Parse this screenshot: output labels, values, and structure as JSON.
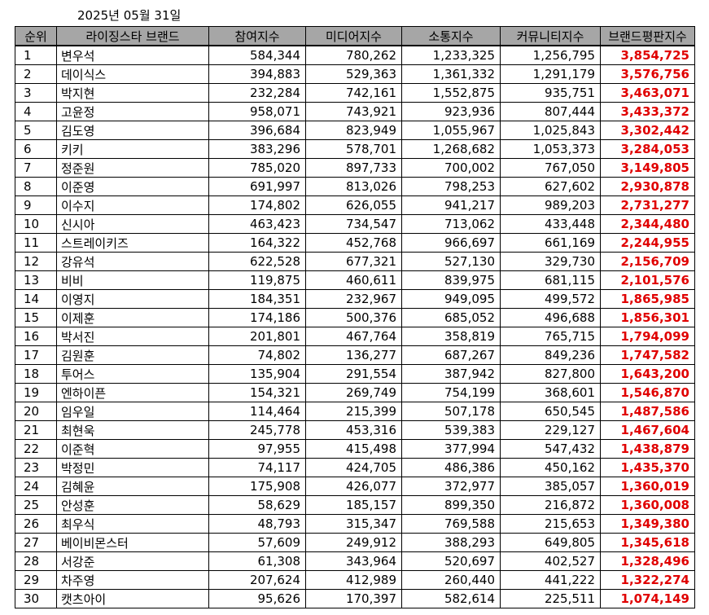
{
  "date": "2025년 05월 31일",
  "headers": [
    "순위",
    "라이징스타 브랜드",
    "참여지수",
    "미디어지수",
    "소통지수",
    "커뮤니티지수",
    "브랜드평판지수"
  ],
  "rows": [
    [
      "1",
      "변우석",
      "584,344",
      "780,262",
      "1,233,325",
      "1,256,795",
      "3,854,725"
    ],
    [
      "2",
      "데이식스",
      "394,883",
      "529,363",
      "1,361,332",
      "1,291,179",
      "3,576,756"
    ],
    [
      "3",
      "박지현",
      "232,284",
      "742,161",
      "1,552,875",
      "935,751",
      "3,463,071"
    ],
    [
      "4",
      "고윤정",
      "958,071",
      "743,921",
      "923,936",
      "807,444",
      "3,433,372"
    ],
    [
      "5",
      "김도영",
      "396,684",
      "823,949",
      "1,055,967",
      "1,025,843",
      "3,302,442"
    ],
    [
      "6",
      "키키",
      "383,296",
      "578,701",
      "1,268,682",
      "1,053,373",
      "3,284,053"
    ],
    [
      "7",
      "정준원",
      "785,020",
      "897,733",
      "700,002",
      "767,050",
      "3,149,805"
    ],
    [
      "8",
      "이준영",
      "691,997",
      "813,026",
      "798,253",
      "627,602",
      "2,930,878"
    ],
    [
      "9",
      "이수지",
      "174,802",
      "626,055",
      "941,217",
      "989,203",
      "2,731,277"
    ],
    [
      "10",
      "신시아",
      "463,423",
      "734,547",
      "713,062",
      "433,448",
      "2,344,480"
    ],
    [
      "11",
      "스트레이키즈",
      "164,322",
      "452,768",
      "966,697",
      "661,169",
      "2,244,955"
    ],
    [
      "12",
      "강유석",
      "622,528",
      "677,321",
      "527,130",
      "329,730",
      "2,156,709"
    ],
    [
      "13",
      "비비",
      "119,875",
      "460,611",
      "839,975",
      "681,115",
      "2,101,576"
    ],
    [
      "14",
      "이영지",
      "184,351",
      "232,967",
      "949,095",
      "499,572",
      "1,865,985"
    ],
    [
      "15",
      "이제훈",
      "174,186",
      "500,376",
      "685,052",
      "496,688",
      "1,856,301"
    ],
    [
      "16",
      "박서진",
      "201,801",
      "467,764",
      "358,819",
      "765,715",
      "1,794,099"
    ],
    [
      "17",
      "김원훈",
      "74,802",
      "136,277",
      "687,267",
      "849,236",
      "1,747,582"
    ],
    [
      "18",
      "투어스",
      "135,904",
      "291,554",
      "387,942",
      "827,800",
      "1,643,200"
    ],
    [
      "19",
      "엔하이픈",
      "154,321",
      "269,749",
      "754,199",
      "368,601",
      "1,546,870"
    ],
    [
      "20",
      "임우일",
      "114,464",
      "215,399",
      "507,178",
      "650,545",
      "1,487,586"
    ],
    [
      "21",
      "최현욱",
      "245,778",
      "453,316",
      "539,383",
      "229,127",
      "1,467,604"
    ],
    [
      "22",
      "이준혁",
      "97,955",
      "415,498",
      "377,994",
      "547,432",
      "1,438,879"
    ],
    [
      "23",
      "박정민",
      "74,117",
      "424,705",
      "486,386",
      "450,162",
      "1,435,370"
    ],
    [
      "24",
      "김혜윤",
      "175,908",
      "426,077",
      "372,977",
      "385,057",
      "1,360,019"
    ],
    [
      "25",
      "안성훈",
      "58,629",
      "185,157",
      "899,350",
      "216,872",
      "1,360,008"
    ],
    [
      "26",
      "최우식",
      "48,793",
      "315,347",
      "769,588",
      "215,653",
      "1,349,380"
    ],
    [
      "27",
      "베이비몬스터",
      "57,609",
      "249,912",
      "388,293",
      "649,805",
      "1,345,618"
    ],
    [
      "28",
      "서강준",
      "61,308",
      "343,964",
      "520,697",
      "402,527",
      "1,328,496"
    ],
    [
      "29",
      "차주영",
      "207,624",
      "412,989",
      "260,440",
      "441,222",
      "1,322,274"
    ],
    [
      "30",
      "캣츠아이",
      "95,626",
      "170,397",
      "582,614",
      "225,511",
      "1,074,149"
    ]
  ]
}
